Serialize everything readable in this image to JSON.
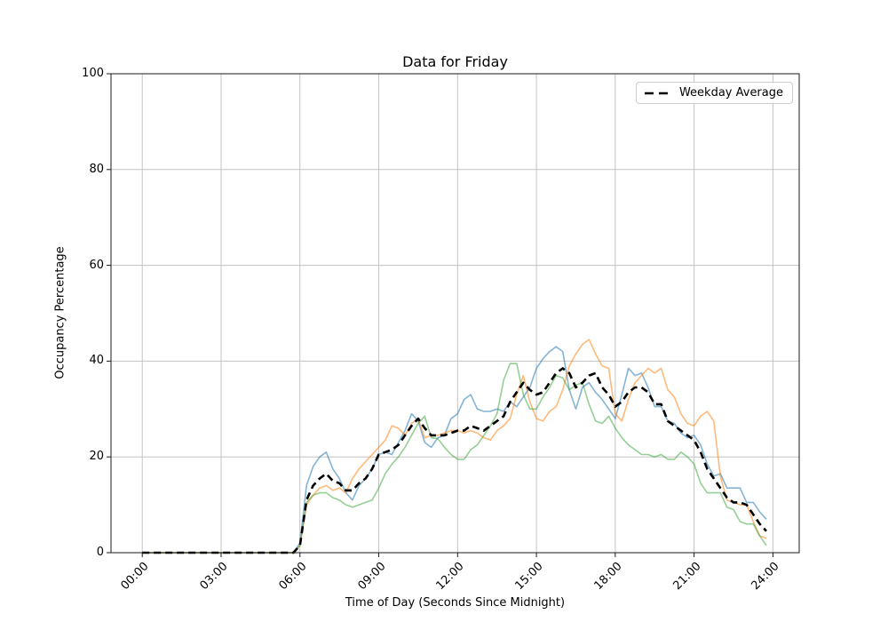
{
  "title": "Data for Friday",
  "xlabel": "Time of Day (Seconds Since Midnight)",
  "ylabel": "Occupancy Percentage",
  "legend": {
    "label": "Weekday Average",
    "position": "upper right"
  },
  "axes": {
    "x_tick_labels": [
      "00:00",
      "03:00",
      "06:00",
      "09:00",
      "12:00",
      "15:00",
      "18:00",
      "21:00",
      "24:00"
    ],
    "x_tick_hours": [
      0,
      3,
      6,
      9,
      12,
      15,
      18,
      21,
      24
    ],
    "y_tick_labels": [
      "0",
      "20",
      "40",
      "60",
      "80",
      "100"
    ],
    "y_ticks": [
      0,
      20,
      40,
      60,
      80,
      100
    ],
    "ylim": [
      0,
      100
    ],
    "grid": true,
    "grid_color": "#c3c3c3",
    "spine_color": "#1a1a1a",
    "background": "#ffffff"
  },
  "chart_data": {
    "type": "line",
    "title": "Data for Friday",
    "xlabel": "Time of Day (Seconds Since Midnight)",
    "ylabel": "Occupancy Percentage",
    "ylim": [
      0,
      100
    ],
    "legend_entries": [
      "Weekday Average"
    ],
    "legend_position": "upper right",
    "x_start_hour": 0,
    "x_step_hours": 0.25,
    "series": [
      {
        "label": null,
        "id": "friday-line-blue",
        "color": "#1f77b4",
        "alpha": 0.55,
        "style": "solid",
        "width": 1.6,
        "values": [
          0,
          0,
          0,
          0,
          0,
          0,
          0,
          0,
          0,
          0,
          0,
          0,
          0,
          0,
          0,
          0,
          0,
          0,
          0,
          0,
          0,
          0,
          0,
          0,
          2,
          14,
          18,
          20,
          21,
          17.5,
          15.5,
          12.5,
          11,
          14,
          15.5,
          17.5,
          20.5,
          21,
          20.5,
          23,
          25.5,
          29,
          27.5,
          23,
          22,
          24,
          24.5,
          28,
          29,
          32,
          33,
          30,
          29.5,
          29.5,
          30,
          29.5,
          31.5,
          30.5,
          32.5,
          34.5,
          38.5,
          40.5,
          42,
          43,
          42,
          34,
          30,
          34.5,
          35.5,
          33.5,
          32,
          30,
          28,
          33,
          38.5,
          37,
          37.5,
          34.5,
          30.5,
          30.5,
          27.5,
          27,
          25,
          24,
          24.5,
          22.5,
          18.5,
          16,
          16.5,
          13.5,
          13.5,
          13.5,
          10.5,
          10.5,
          8.5,
          7
        ]
      },
      {
        "label": null,
        "id": "friday-line-orange",
        "color": "#ff7f0e",
        "alpha": 0.55,
        "style": "solid",
        "width": 1.6,
        "values": [
          0,
          0,
          0,
          0,
          0,
          0,
          0,
          0,
          0,
          0,
          0,
          0,
          0,
          0,
          0,
          0,
          0,
          0,
          0,
          0,
          0,
          0,
          0,
          0,
          1.5,
          10,
          12,
          13.5,
          14,
          13,
          13.5,
          12.5,
          15.5,
          17.5,
          19,
          20.5,
          22,
          23.5,
          26.5,
          26,
          24.5,
          27,
          28,
          24,
          24.5,
          24.5,
          25,
          25.5,
          25.5,
          25,
          25.5,
          25,
          24,
          23.5,
          25.5,
          26.5,
          28,
          33,
          37,
          31.5,
          28,
          27.5,
          29.5,
          30.5,
          34,
          39,
          41.5,
          43.5,
          44.5,
          41.5,
          39,
          38.5,
          29,
          27.5,
          32,
          35.5,
          37,
          38.5,
          37.5,
          38.5,
          34,
          32.5,
          29,
          27,
          26.5,
          28.5,
          29.5,
          27.5,
          16,
          11,
          10.5,
          10,
          10,
          6.5,
          3.5,
          3
        ]
      },
      {
        "label": null,
        "id": "friday-line-green",
        "color": "#2ca02c",
        "alpha": 0.5,
        "style": "solid",
        "width": 1.6,
        "values": [
          0,
          0,
          0,
          0,
          0,
          0,
          0,
          0,
          0,
          0,
          0,
          0,
          0,
          0,
          0,
          0,
          0,
          0,
          0,
          0,
          0,
          0,
          0,
          0,
          1.5,
          10.5,
          12,
          12.5,
          12.5,
          11.5,
          11,
          10,
          9.5,
          10,
          10.5,
          11,
          13.5,
          16.5,
          18.5,
          20,
          22,
          24.5,
          27,
          28.5,
          24,
          23.8,
          22,
          20.5,
          19.5,
          19.5,
          21.5,
          22.5,
          24.5,
          26.5,
          29,
          36,
          39.5,
          39.5,
          33,
          30,
          30,
          32.5,
          34.5,
          37,
          36.5,
          34,
          35,
          35.5,
          31,
          27.5,
          27,
          28.5,
          26,
          24,
          22.5,
          21.5,
          20.5,
          20.5,
          20,
          20.5,
          19.5,
          19.5,
          21,
          20,
          18.5,
          14.5,
          12.5,
          12.5,
          12.5,
          9.5,
          9,
          6.5,
          6,
          6,
          3.5,
          1.5
        ]
      },
      {
        "label": "Weekday Average",
        "id": "weekday-average-line",
        "color": "#000000",
        "alpha": 1,
        "style": "dashed",
        "width": 2.6,
        "values": [
          0,
          0,
          0,
          0,
          0,
          0,
          0,
          0,
          0,
          0,
          0,
          0,
          0,
          0,
          0,
          0,
          0,
          0,
          0,
          0,
          0,
          0,
          0,
          0,
          1.5,
          11,
          14,
          15.5,
          16.5,
          15,
          14.5,
          13,
          13,
          14.5,
          15.5,
          17.5,
          20.5,
          21,
          21.5,
          22.5,
          24.5,
          26.5,
          28,
          26,
          24.5,
          24.5,
          24.5,
          25,
          25.5,
          25.5,
          26.5,
          26,
          25.5,
          26.5,
          27.5,
          28.5,
          31.5,
          33.5,
          35.5,
          34,
          33,
          33.5,
          35.5,
          37.5,
          38.5,
          37.5,
          34.5,
          35.5,
          37,
          37.5,
          34.5,
          33,
          30.5,
          31.5,
          33.5,
          34.5,
          34.5,
          33.5,
          31,
          31,
          27.5,
          26.5,
          25.5,
          24.5,
          23.5,
          21,
          17.5,
          15.5,
          13.5,
          11.5,
          10.5,
          10.5,
          10,
          8,
          6,
          4.5
        ]
      }
    ]
  }
}
